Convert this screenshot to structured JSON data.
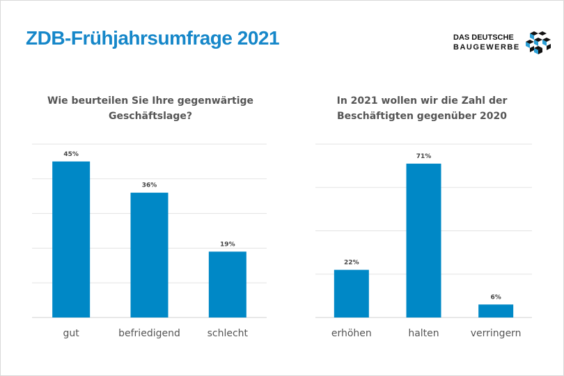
{
  "header": {
    "title": "ZDB-Frühjahrsumfrage  2021",
    "logo_line1": "DAS DEUTSCHE",
    "logo_line2": "BAUGEWERBE"
  },
  "colors": {
    "bar": "#0088c6",
    "title": "#1687c9",
    "grid": "#e3e3e3"
  },
  "chart_data": [
    {
      "type": "bar",
      "title_line1": "Wie beurteilen Sie Ihre gegenwärtige",
      "title_line2": "Geschäftslage?",
      "categories": [
        "gut",
        "befriedigend",
        "schlecht"
      ],
      "values": [
        45,
        36,
        19
      ],
      "data_labels": [
        "45%",
        "36%",
        "19%"
      ],
      "ylim": [
        0,
        50
      ],
      "ystep": 10,
      "grid": true,
      "yaxis_labels_shown": false
    },
    {
      "type": "bar",
      "title_line1": "In 2021 wollen wir die Zahl der",
      "title_line2": "Beschäftigten gegenüber 2020",
      "categories": [
        "erhöhen",
        "halten",
        "verringern"
      ],
      "values": [
        22,
        71,
        6
      ],
      "data_labels": [
        "22%",
        "71%",
        "6%"
      ],
      "ylim": [
        0,
        80
      ],
      "ystep": 20,
      "grid": true,
      "yaxis_labels_shown": false
    }
  ]
}
